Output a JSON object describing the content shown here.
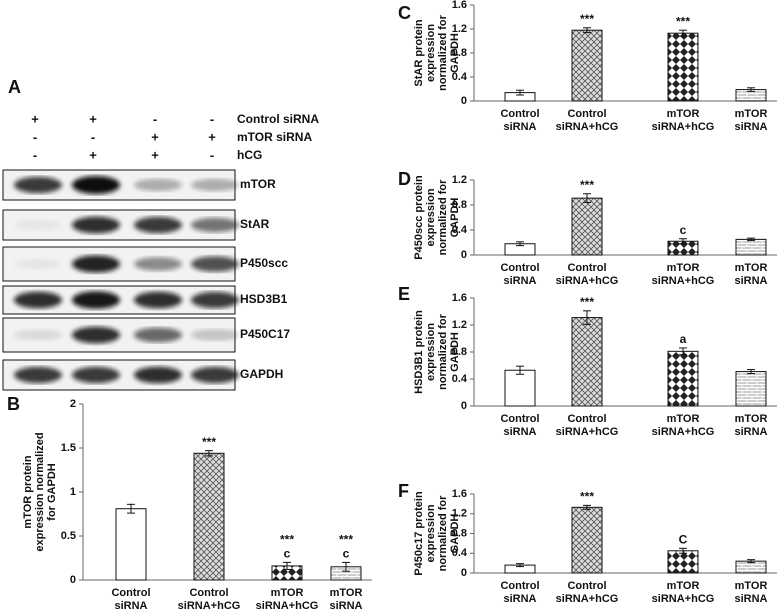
{
  "blot": {
    "label": "A",
    "conditions": [
      {
        "name": "Control siRNA",
        "signs": [
          "+",
          "+",
          "-",
          "-"
        ]
      },
      {
        "name": "mTOR siRNA",
        "signs": [
          "-",
          "-",
          "+",
          "+"
        ]
      },
      {
        "name": "hCG",
        "signs": [
          "-",
          "+",
          "+",
          "-"
        ]
      }
    ],
    "proteins": [
      "mTOR",
      "StAR",
      "P450scc",
      "HSD3B1",
      "P450C17",
      "GAPDH"
    ]
  },
  "chart_data": [
    {
      "type": "bar",
      "panel": "B",
      "ylabel": [
        "mTOR protein",
        "expression normalized",
        "for GAPDH"
      ],
      "categories": [
        [
          "Control",
          "siRNA"
        ],
        [
          "Control",
          "siRNA+hCG"
        ],
        [
          "mTOR",
          "siRNA+hCG"
        ],
        [
          "mTOR",
          "siRNA"
        ]
      ],
      "values": [
        0.81,
        1.44,
        0.16,
        0.15
      ],
      "errors": [
        0.05,
        0.03,
        0.04,
        0.05
      ],
      "bar_labels": [
        [],
        [
          "***"
        ],
        [
          "***",
          "c"
        ],
        [
          "***",
          "c"
        ]
      ],
      "fills": [
        "white",
        "crosshatch",
        "checker",
        "brick"
      ],
      "ylim": [
        0,
        2
      ],
      "yticks": [
        0,
        0.5,
        1,
        1.5,
        2
      ]
    },
    {
      "type": "bar",
      "panel": "C",
      "ylabel": [
        "StAR protein",
        "expression",
        "normalized for",
        "GAPDH"
      ],
      "categories": [
        [
          "Control",
          "siRNA"
        ],
        [
          "Control",
          "siRNA+hCG"
        ],
        [
          "mTOR",
          "siRNA+hCG"
        ],
        [
          "mTOR",
          "siRNA"
        ]
      ],
      "values": [
        0.14,
        1.18,
        1.13,
        0.19
      ],
      "errors": [
        0.04,
        0.04,
        0.05,
        0.03
      ],
      "bar_labels": [
        [],
        [
          "***"
        ],
        [
          "***"
        ],
        []
      ],
      "fills": [
        "white",
        "crosshatch",
        "checker",
        "brick"
      ],
      "ylim": [
        0,
        1.6
      ],
      "yticks": [
        0,
        0.4,
        0.8,
        1.2,
        1.6
      ]
    },
    {
      "type": "bar",
      "panel": "D",
      "ylabel": [
        "P450scc protein",
        "expression",
        "normalized for",
        "GAPDH"
      ],
      "categories": [
        [
          "Control",
          "siRNA"
        ],
        [
          "Control",
          "siRNA+hCG"
        ],
        [
          "mTOR",
          "siRNA+hCG"
        ],
        [
          "mTOR",
          "siRNA"
        ]
      ],
      "values": [
        0.18,
        0.91,
        0.22,
        0.25
      ],
      "errors": [
        0.03,
        0.07,
        0.04,
        0.02
      ],
      "bar_labels": [
        [],
        [
          "***"
        ],
        [
          "c"
        ],
        []
      ],
      "fills": [
        "white",
        "crosshatch",
        "checker",
        "brick"
      ],
      "ylim": [
        0,
        1.2
      ],
      "yticks": [
        0,
        0.4,
        0.8,
        1.2
      ]
    },
    {
      "type": "bar",
      "panel": "E",
      "ylabel": [
        "HSD3B1 protein",
        "expression",
        "normalized for",
        "GAPDH"
      ],
      "categories": [
        [
          "Control",
          "siRNA"
        ],
        [
          "Control",
          "siRNA+hCG"
        ],
        [
          "mTOR",
          "siRNA+hCG"
        ],
        [
          "mTOR",
          "siRNA"
        ]
      ],
      "values": [
        0.53,
        1.31,
        0.81,
        0.51
      ],
      "errors": [
        0.06,
        0.1,
        0.05,
        0.03
      ],
      "bar_labels": [
        [],
        [
          "***"
        ],
        [
          "a"
        ],
        []
      ],
      "fills": [
        "white",
        "crosshatch",
        "checker",
        "brick"
      ],
      "ylim": [
        0,
        1.6
      ],
      "yticks": [
        0,
        0.4,
        0.8,
        1.2,
        1.6
      ]
    },
    {
      "type": "bar",
      "panel": "F",
      "ylabel": [
        "P450c17 protein",
        "expression",
        "normalized for",
        "GAPDH"
      ],
      "categories": [
        [
          "Control",
          "siRNA"
        ],
        [
          "Control",
          "siRNA+hCG"
        ],
        [
          "mTOR",
          "siRNA+hCG"
        ],
        [
          "mTOR",
          "siRNA"
        ]
      ],
      "values": [
        0.16,
        1.33,
        0.45,
        0.24
      ],
      "errors": [
        0.03,
        0.04,
        0.05,
        0.03
      ],
      "bar_labels": [
        [],
        [
          "***"
        ],
        [
          "C"
        ],
        []
      ],
      "fills": [
        "white",
        "crosshatch",
        "checker",
        "brick"
      ],
      "ylim": [
        0,
        1.6
      ],
      "yticks": [
        0,
        0.4,
        0.8,
        1.2,
        1.6
      ]
    }
  ]
}
